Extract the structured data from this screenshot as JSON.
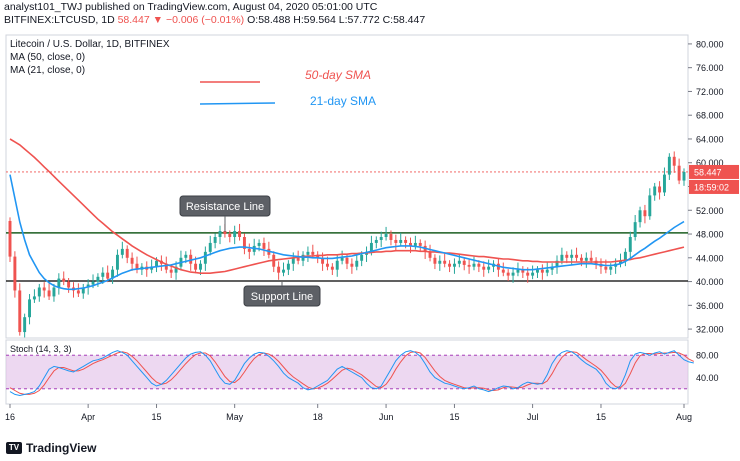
{
  "header": {
    "author_line": "analyst101_TWJ published on TradingView.com, August 04, 2020 05:01:00 UTC",
    "symbol_line": "BITFINEX:LTCUSD, 1D",
    "last": "58.447",
    "change": "−0.006 (−0.01%)",
    "o": "O:58.488",
    "h": "H:59.564",
    "l": "L:57.772",
    "c": "C:58.447"
  },
  "chart_data": {
    "type": "candlestick",
    "title": "Litecoin / U.S. Dollar, 1D, BITFINEX",
    "indicators": [
      "MA (50, close, 0)",
      "MA (21, close, 0)"
    ],
    "legend": [
      {
        "name": "50-day SMA",
        "color": "#ef5350"
      },
      {
        "name": "21-day SMA",
        "color": "#2196f3"
      }
    ],
    "annotations": {
      "resistance": "Resistance Line",
      "support": "Support Line"
    },
    "resistance_level": 48.2,
    "support_level": 40.1,
    "price_axis": [
      "80.000",
      "76.000",
      "72.000",
      "68.000",
      "64.000",
      "60.000",
      "56.000",
      "52.000",
      "48.000",
      "44.000",
      "40.000",
      "36.000",
      "32.000"
    ],
    "ylim": [
      30.5,
      81.5
    ],
    "x_ticks": [
      {
        "label": "16",
        "day": 0
      },
      {
        "label": "Apr",
        "day": 16
      },
      {
        "label": "15",
        "day": 30
      },
      {
        "label": "May",
        "day": 46
      },
      {
        "label": "18",
        "day": 63
      },
      {
        "label": "Jun",
        "day": 77
      },
      {
        "label": "15",
        "day": 91
      },
      {
        "label": "Jul",
        "day": 107
      },
      {
        "label": "15",
        "day": 121
      },
      {
        "label": "Aug",
        "day": 138
      }
    ],
    "last_price": "58.447",
    "countdown": "18:59:02",
    "price_color_up": "#26a69a",
    "price_color_down": "#ef5350",
    "closes": [
      44.2,
      38.5,
      31.5,
      34.0,
      37.0,
      37.5,
      39.0,
      38.5,
      37.5,
      39.0,
      40.5,
      40.0,
      39.0,
      38.5,
      38.0,
      39.0,
      39.5,
      40.0,
      40.8,
      41.5,
      40.5,
      42.0,
      44.5,
      45.5,
      44.0,
      43.0,
      42.0,
      42.5,
      42.0,
      42.5,
      43.5,
      43.0,
      42.0,
      41.5,
      42.5,
      44.0,
      44.5,
      43.0,
      42.0,
      43.0,
      45.0,
      46.5,
      47.5,
      48.5,
      48.0,
      47.5,
      48.5,
      47.5,
      45.5,
      45.0,
      46.0,
      46.5,
      45.5,
      44.5,
      42.5,
      41.5,
      42.0,
      43.0,
      44.0,
      43.5,
      44.5,
      45.0,
      44.5,
      44.0,
      43.0,
      42.5,
      42.0,
      43.5,
      44.0,
      43.0,
      42.5,
      43.5,
      44.5,
      45.0,
      46.5,
      47.0,
      47.5,
      48.0,
      47.0,
      46.5,
      47.0,
      46.5,
      46.0,
      46.5,
      46.0,
      45.0,
      44.0,
      43.0,
      43.5,
      43.0,
      42.5,
      43.0,
      43.5,
      42.8,
      42.5,
      43.0,
      42.5,
      42.0,
      42.5,
      43.0,
      42.0,
      41.5,
      41.0,
      41.5,
      42.0,
      41.5,
      41.0,
      41.5,
      42.0,
      41.5,
      42.0,
      42.5,
      43.5,
      44.5,
      44.0,
      44.5,
      44.0,
      43.5,
      44.0,
      43.5,
      43.0,
      42.5,
      42.0,
      42.5,
      43.0,
      43.5,
      45.0,
      47.5,
      50.0,
      52.0,
      51.0,
      54.5,
      56.0,
      55.0,
      58.0,
      61.0,
      59.5,
      57.0,
      58.447
    ],
    "sma21": [
      58.0,
      54.0,
      50.0,
      47.0,
      44.5,
      43.0,
      41.5,
      40.5,
      39.8,
      39.3,
      39.0,
      38.8,
      38.7,
      38.7,
      38.8,
      38.9,
      39.1,
      39.3,
      39.6,
      39.9,
      40.2,
      40.6,
      41.0,
      41.4,
      41.7,
      42.0,
      42.1,
      42.2,
      42.3,
      42.4,
      42.5,
      42.6,
      42.7,
      42.8,
      43.0,
      43.2,
      43.4,
      43.6,
      43.8,
      44.0,
      44.3,
      44.6,
      44.9,
      45.2,
      45.4,
      45.6,
      45.7,
      45.8,
      45.8,
      45.7,
      45.6,
      45.5,
      45.3,
      45.1,
      44.9,
      44.7,
      44.5,
      44.4,
      44.3,
      44.2,
      44.1,
      44.1,
      44.0,
      44.0,
      43.9,
      43.9,
      43.9,
      44.0,
      44.1,
      44.2,
      44.3,
      44.5,
      44.7,
      44.9,
      45.1,
      45.3,
      45.5,
      45.7,
      45.8,
      45.9,
      46.0,
      46.0,
      46.0,
      45.9,
      45.8,
      45.6,
      45.4,
      45.2,
      45.0,
      44.8,
      44.6,
      44.4,
      44.2,
      44.0,
      43.8,
      43.6,
      43.4,
      43.2,
      43.0,
      42.8,
      42.6,
      42.4,
      42.3,
      42.2,
      42.1,
      42.0,
      42.0,
      42.0,
      42.1,
      42.2,
      42.3,
      42.4,
      42.5,
      42.6,
      42.7,
      42.8,
      42.9,
      43.0,
      43.0,
      43.0,
      42.9,
      42.8,
      42.7,
      42.7,
      42.8,
      43.0,
      43.4,
      43.9,
      44.5,
      45.1,
      45.6,
      46.2,
      46.8,
      47.3,
      47.9,
      48.5,
      49.1,
      49.6,
      50.1
    ],
    "sma50": [
      64.0,
      63.5,
      63.0,
      62.3,
      61.6,
      60.9,
      60.1,
      59.3,
      58.5,
      57.7,
      56.9,
      56.1,
      55.3,
      54.5,
      53.7,
      52.9,
      52.1,
      51.3,
      50.5,
      49.8,
      49.1,
      48.4,
      47.8,
      47.2,
      46.6,
      46.0,
      45.5,
      45.0,
      44.5,
      44.1,
      43.7,
      43.3,
      42.9,
      42.6,
      42.3,
      42.0,
      41.8,
      41.6,
      41.5,
      41.4,
      41.4,
      41.4,
      41.5,
      41.6,
      41.7,
      41.9,
      42.1,
      42.3,
      42.5,
      42.7,
      42.9,
      43.1,
      43.3,
      43.5,
      43.6,
      43.7,
      43.8,
      43.9,
      44.0,
      44.1,
      44.2,
      44.3,
      44.3,
      44.4,
      44.4,
      44.5,
      44.5,
      44.5,
      44.6,
      44.6,
      44.7,
      44.7,
      44.8,
      44.8,
      44.9,
      45.0,
      45.0,
      45.1,
      45.1,
      45.2,
      45.2,
      45.2,
      45.2,
      45.2,
      45.1,
      45.1,
      45.0,
      45.0,
      44.9,
      44.8,
      44.8,
      44.7,
      44.6,
      44.5,
      44.4,
      44.3,
      44.2,
      44.2,
      44.1,
      44.0,
      43.9,
      43.8,
      43.8,
      43.7,
      43.6,
      43.5,
      43.5,
      43.4,
      43.4,
      43.3,
      43.3,
      43.3,
      43.3,
      43.3,
      43.3,
      43.3,
      43.3,
      43.3,
      43.3,
      43.3,
      43.3,
      43.3,
      43.3,
      43.3,
      43.4,
      43.5,
      43.6,
      43.7,
      43.9,
      44.0,
      44.2,
      44.4,
      44.6,
      44.8,
      45.0,
      45.2,
      45.4,
      45.6,
      45.8
    ],
    "stoch_panel": {
      "label": "Stoch (14, 3, 3)",
      "axis": [
        "80.00",
        "40.00"
      ],
      "ylim": [
        0,
        100
      ],
      "band": [
        20,
        80
      ],
      "k": [
        15,
        10,
        8,
        10,
        12,
        15,
        25,
        40,
        55,
        60,
        58,
        55,
        52,
        50,
        55,
        60,
        65,
        70,
        72,
        75,
        80,
        85,
        88,
        85,
        80,
        70,
        60,
        50,
        40,
        30,
        25,
        28,
        35,
        45,
        55,
        65,
        75,
        82,
        85,
        86,
        80,
        70,
        55,
        40,
        30,
        28,
        35,
        50,
        65,
        75,
        82,
        85,
        84,
        78,
        70,
        60,
        48,
        40,
        35,
        30,
        22,
        18,
        20,
        25,
        30,
        35,
        45,
        55,
        60,
        55,
        50,
        45,
        40,
        30,
        22,
        20,
        25,
        40,
        55,
        70,
        80,
        86,
        88,
        85,
        78,
        65,
        50,
        40,
        35,
        30,
        28,
        25,
        22,
        20,
        22,
        25,
        20,
        18,
        15,
        18,
        22,
        25,
        24,
        20,
        22,
        28,
        32,
        30,
        28,
        30,
        45,
        65,
        78,
        85,
        88,
        86,
        80,
        72,
        65,
        60,
        55,
        45,
        30,
        22,
        20,
        25,
        45,
        70,
        82,
        85,
        83,
        80,
        84,
        86,
        82,
        85,
        88,
        80,
        72,
        68,
        66
      ],
      "d": [
        22,
        17,
        12,
        10,
        10,
        12,
        17,
        27,
        40,
        52,
        58,
        58,
        55,
        52,
        52,
        55,
        60,
        65,
        69,
        72,
        76,
        80,
        84,
        86,
        84,
        78,
        70,
        60,
        50,
        40,
        32,
        28,
        30,
        36,
        45,
        55,
        65,
        74,
        81,
        84,
        84,
        79,
        68,
        55,
        42,
        33,
        31,
        38,
        50,
        63,
        74,
        81,
        84,
        82,
        77,
        69,
        59,
        49,
        41,
        35,
        29,
        23,
        20,
        21,
        25,
        30,
        37,
        45,
        53,
        57,
        55,
        50,
        45,
        38,
        31,
        24,
        22,
        28,
        40,
        55,
        68,
        79,
        85,
        86,
        84,
        76,
        64,
        52,
        42,
        35,
        31,
        28,
        25,
        22,
        21,
        22,
        22,
        21,
        18,
        17,
        18,
        22,
        24,
        23,
        22,
        23,
        27,
        30,
        30,
        29,
        34,
        47,
        63,
        76,
        84,
        86,
        85,
        79,
        72,
        66,
        60,
        53,
        43,
        32,
        24,
        22,
        30,
        47,
        66,
        79,
        83,
        83,
        82,
        83,
        84,
        84,
        85,
        84,
        80,
        73,
        69
      ]
    }
  }
}
